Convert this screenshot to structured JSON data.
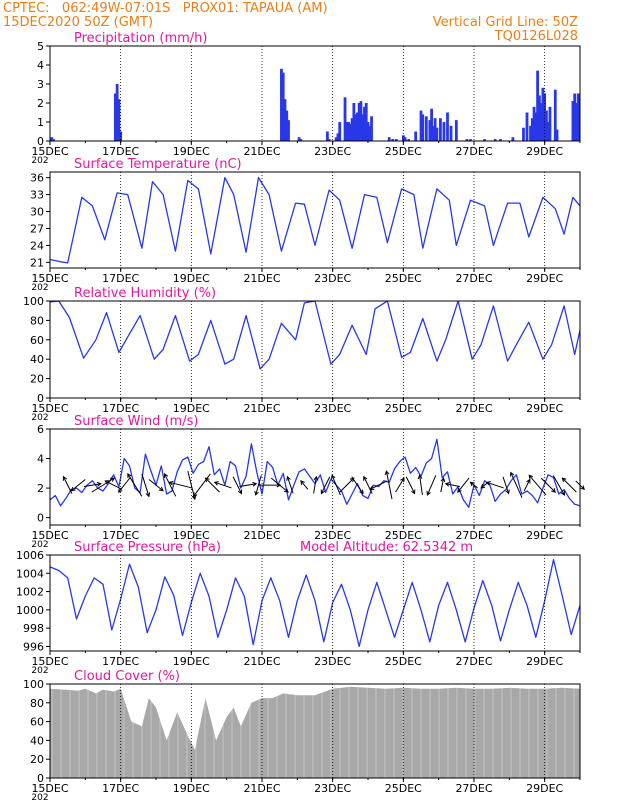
{
  "header": {
    "line1_left": "CPTEC:   062:49W-07:01S   PROX01: TAPAUA (AM)",
    "line2_left": "15DEC2020 50Z (GMT)",
    "line2_right": "Vertical Grid Line: 50Z",
    "line3_right": "TQ0126L028"
  },
  "colors": {
    "header": "#e8801a",
    "title": "#e01aa0",
    "line": "#2838e8",
    "bar": "#2838e8",
    "cloud": "#a8a8a8",
    "text": "#000000"
  },
  "x_axis": {
    "range_days": [
      15,
      30
    ],
    "tick_labels": [
      "15DEC",
      "17DEC",
      "19DEC",
      "21DEC",
      "23DEC",
      "25DEC",
      "27DEC",
      "29DEC"
    ],
    "tick_days": [
      15,
      17,
      19,
      21,
      23,
      25,
      27,
      29
    ],
    "year_fragment": "202",
    "vertical_gridlines": "dotted at each label day"
  },
  "chart_data": [
    {
      "id": "precip",
      "type": "bar",
      "title": "Precipitation (mm/h)",
      "ylim": [
        0,
        5
      ],
      "yticks": [
        0,
        1,
        2,
        3,
        4,
        5
      ],
      "x": [
        15.05,
        15.1,
        16.85,
        16.9,
        16.95,
        17.0,
        21.55,
        21.6,
        21.65,
        21.7,
        21.75,
        22.05,
        22.1,
        22.85,
        22.9,
        23.1,
        23.15,
        23.2,
        23.35,
        23.4,
        23.45,
        23.5,
        23.55,
        23.6,
        23.65,
        23.7,
        23.75,
        23.8,
        23.85,
        23.9,
        23.95,
        24.0,
        24.05,
        24.1,
        24.6,
        24.7,
        24.8,
        25.0,
        25.05,
        25.15,
        25.35,
        25.5,
        25.55,
        25.65,
        25.75,
        25.8,
        25.85,
        25.9,
        25.95,
        26.05,
        26.15,
        26.25,
        26.35,
        26.5,
        26.8,
        26.9,
        27.3,
        27.6,
        27.75,
        28.1,
        28.4,
        28.5,
        28.6,
        28.65,
        28.7,
        28.75,
        28.8,
        28.85,
        28.9,
        28.95,
        29.0,
        29.05,
        29.1,
        29.15,
        29.3,
        29.35,
        29.8,
        29.85,
        29.9,
        29.95
      ],
      "values": [
        0.2,
        0.1,
        2.5,
        3.0,
        2.2,
        0.5,
        3.8,
        3.6,
        2.2,
        1.6,
        1.1,
        0.2,
        0.1,
        0.5,
        0.1,
        0.2,
        0.4,
        1.0,
        2.3,
        1.0,
        1.0,
        0.9,
        1.2,
        2.0,
        1.4,
        1.5,
        2.0,
        2.1,
        1.4,
        1.8,
        2.0,
        1.0,
        0.8,
        1.3,
        0.2,
        0.1,
        0.1,
        0.3,
        0.2,
        0.1,
        0.5,
        1.6,
        1.4,
        1.3,
        1.1,
        1.7,
        0.8,
        1.2,
        0.7,
        1.2,
        1.0,
        1.5,
        0.8,
        1.1,
        0.1,
        0.1,
        0.1,
        0.1,
        0.1,
        0.2,
        0.7,
        1.5,
        0.8,
        1.2,
        1.8,
        1.5,
        3.7,
        2.4,
        2.0,
        2.8,
        2.5,
        1.6,
        1.0,
        1.8,
        2.7,
        0.6,
        2.1,
        2.5,
        2.0,
        2.5
      ]
    },
    {
      "id": "temp",
      "type": "line",
      "title": "Surface Temperature (nC)",
      "ylim": [
        20,
        37
      ],
      "yticks": [
        21,
        24,
        27,
        30,
        33,
        36
      ],
      "x": [
        15.0,
        15.3,
        15.5,
        15.9,
        16.2,
        16.55,
        16.9,
        17.2,
        17.6,
        17.9,
        18.2,
        18.55,
        18.9,
        19.2,
        19.55,
        19.95,
        20.2,
        20.55,
        20.9,
        21.2,
        21.55,
        21.95,
        22.2,
        22.5,
        22.9,
        23.2,
        23.55,
        23.9,
        24.25,
        24.55,
        24.95,
        25.3,
        25.55,
        25.95,
        26.3,
        26.5,
        26.9,
        27.3,
        27.55,
        27.95,
        28.3,
        28.55,
        28.95,
        29.3,
        29.55,
        29.8,
        30.0
      ],
      "values": [
        21.5,
        21.1,
        20.9,
        32.5,
        31.0,
        25.0,
        33.3,
        33.0,
        23.5,
        35.3,
        33.0,
        23.0,
        35.5,
        34.0,
        22.5,
        36.0,
        33.0,
        22.8,
        36.0,
        33.0,
        23.0,
        31.5,
        31.3,
        24.0,
        33.8,
        32.0,
        23.5,
        33.0,
        32.5,
        24.5,
        34.0,
        33.0,
        23.5,
        34.0,
        32.0,
        24.0,
        32.0,
        31.0,
        24.0,
        31.5,
        31.5,
        25.5,
        32.5,
        30.5,
        26.0,
        32.5,
        31.0
      ]
    },
    {
      "id": "rh",
      "type": "line",
      "title": "Relative Humidity (%)",
      "ylim": [
        0,
        100
      ],
      "yticks": [
        0,
        20,
        40,
        60,
        80,
        100
      ],
      "x": [
        15.0,
        15.25,
        15.55,
        15.95,
        16.3,
        16.6,
        16.95,
        17.2,
        17.55,
        17.95,
        18.2,
        18.55,
        18.95,
        19.2,
        19.55,
        19.95,
        20.2,
        20.55,
        20.95,
        21.2,
        21.55,
        21.95,
        22.2,
        22.5,
        22.95,
        23.2,
        23.55,
        23.95,
        24.2,
        24.55,
        24.95,
        25.2,
        25.55,
        25.95,
        26.2,
        26.55,
        26.95,
        27.2,
        27.55,
        27.95,
        28.2,
        28.55,
        28.95,
        29.2,
        29.55,
        29.85,
        30.0
      ],
      "values": [
        99,
        100,
        83,
        41,
        60,
        88,
        47,
        63,
        85,
        40,
        50,
        85,
        38,
        45,
        80,
        35,
        40,
        85,
        30,
        40,
        77,
        60,
        98,
        100,
        35,
        45,
        75,
        45,
        92,
        100,
        42,
        47,
        82,
        38,
        60,
        100,
        40,
        55,
        95,
        38,
        55,
        78,
        40,
        55,
        95,
        45,
        70
      ]
    },
    {
      "id": "wind",
      "type": "line",
      "title": "Surface Wind (m/s)",
      "ylim": [
        -0.5,
        6
      ],
      "yticks": [
        0,
        2,
        4,
        6
      ],
      "x": [
        15.0,
        15.15,
        15.3,
        15.45,
        15.6,
        15.75,
        15.9,
        16.05,
        16.2,
        16.35,
        16.5,
        16.65,
        16.8,
        16.95,
        17.1,
        17.25,
        17.4,
        17.55,
        17.7,
        17.85,
        18.0,
        18.15,
        18.3,
        18.45,
        18.6,
        18.75,
        18.9,
        19.05,
        19.2,
        19.35,
        19.5,
        19.65,
        19.8,
        19.95,
        20.1,
        20.25,
        20.4,
        20.55,
        20.7,
        20.85,
        21.0,
        21.15,
        21.3,
        21.45,
        21.6,
        21.75,
        21.9,
        22.05,
        22.2,
        22.35,
        22.5,
        22.65,
        22.8,
        22.95,
        23.1,
        23.25,
        23.4,
        23.55,
        23.7,
        23.85,
        24.0,
        24.15,
        24.3,
        24.45,
        24.6,
        24.75,
        24.9,
        25.05,
        25.2,
        25.35,
        25.5,
        25.65,
        25.8,
        25.95,
        26.1,
        26.25,
        26.4,
        26.55,
        26.7,
        26.85,
        27.0,
        27.15,
        27.3,
        27.45,
        27.6,
        27.75,
        27.9,
        28.05,
        28.2,
        28.35,
        28.5,
        28.65,
        28.8,
        28.95,
        29.1,
        29.25,
        29.4,
        29.55,
        29.7,
        29.85,
        30.0
      ],
      "values": [
        1.2,
        1.5,
        0.8,
        1.3,
        1.9,
        2.0,
        1.7,
        2.2,
        2.5,
        2.0,
        1.8,
        2.3,
        2.9,
        2.1,
        4.0,
        3.5,
        2.0,
        1.7,
        4.3,
        3.2,
        2.2,
        3.5,
        1.6,
        1.8,
        3.1,
        3.9,
        4.1,
        3.0,
        3.6,
        3.8,
        4.8,
        2.9,
        3.3,
        2.2,
        3.8,
        3.5,
        2.0,
        2.8,
        5.0,
        3.1,
        1.6,
        3.8,
        3.4,
        2.2,
        3.0,
        1.2,
        2.2,
        3.1,
        3.3,
        2.8,
        2.3,
        2.9,
        1.7,
        2.6,
        2.2,
        1.8,
        0.9,
        1.6,
        2.3,
        1.5,
        1.3,
        2.2,
        2.1,
        2.5,
        2.4,
        3.3,
        3.8,
        4.1,
        3.0,
        3.4,
        2.8,
        3.7,
        4.0,
        5.3,
        2.7,
        3.1,
        1.6,
        2.1,
        1.2,
        0.7,
        2.2,
        1.5,
        2.5,
        2.2,
        1.1,
        1.6,
        1.9,
        2.5,
        2.9,
        1.6,
        1.8,
        1.5,
        1.0,
        2.0,
        2.9,
        2.7,
        1.6,
        1.9,
        1.3,
        0.9,
        0.8
      ]
    },
    {
      "id": "pres",
      "type": "line",
      "title": "Surface Pressure (hPa)",
      "annotation": "Model Altitude: 62.5342 m",
      "ylim": [
        995.5,
        1006
      ],
      "yticks": [
        996,
        998,
        1000,
        1002,
        1004,
        1006
      ],
      "x": [
        15.0,
        15.25,
        15.5,
        15.75,
        16.0,
        16.25,
        16.5,
        16.75,
        17.0,
        17.25,
        17.5,
        17.75,
        18.0,
        18.25,
        18.5,
        18.75,
        19.0,
        19.25,
        19.5,
        19.75,
        20.0,
        20.25,
        20.5,
        20.75,
        21.0,
        21.25,
        21.5,
        21.75,
        22.0,
        22.25,
        22.5,
        22.75,
        23.0,
        23.25,
        23.5,
        23.75,
        24.0,
        24.25,
        24.5,
        24.75,
        25.0,
        25.25,
        25.5,
        25.75,
        26.0,
        26.25,
        26.5,
        26.75,
        27.0,
        27.25,
        27.5,
        27.75,
        28.0,
        28.25,
        28.5,
        28.75,
        29.0,
        29.25,
        29.5,
        29.75,
        30.0
      ],
      "values": [
        1004.7,
        1004.3,
        1003.5,
        999.0,
        1001.5,
        1003.5,
        1002.8,
        997.8,
        1001.2,
        1005.0,
        1002.5,
        997.5,
        1000.0,
        1003.6,
        1001.6,
        997.2,
        1000.8,
        1004.0,
        1001.5,
        997.0,
        1000.0,
        1003.5,
        1001.5,
        996.2,
        1001.0,
        1003.5,
        1001.0,
        997.0,
        1001.0,
        1003.8,
        1001.0,
        996.5,
        1000.8,
        1002.8,
        1000.0,
        996.0,
        1000.0,
        1003.0,
        1000.0,
        997.0,
        1000.0,
        1003.0,
        1000.0,
        996.5,
        1000.5,
        1003.0,
        1000.0,
        996.5,
        1000.2,
        1003.2,
        1000.5,
        996.6,
        1000.0,
        1003.0,
        1000.5,
        997.0,
        1001.0,
        1005.5,
        1001.5,
        997.3,
        1000.5
      ]
    },
    {
      "id": "cloud",
      "type": "area",
      "title": "Cloud Cover (%)",
      "ylim": [
        0,
        100
      ],
      "yticks": [
        0,
        20,
        40,
        60,
        80,
        100
      ],
      "x": [
        15.0,
        15.4,
        15.8,
        16.0,
        16.3,
        16.5,
        16.8,
        17.0,
        17.3,
        17.6,
        17.8,
        18.0,
        18.3,
        18.6,
        18.9,
        19.1,
        19.4,
        19.7,
        20.0,
        20.2,
        20.4,
        20.7,
        21.0,
        21.3,
        21.6,
        22.0,
        22.5,
        23.0,
        23.5,
        24.0,
        24.5,
        25.0,
        25.5,
        26.0,
        26.5,
        27.0,
        27.5,
        28.0,
        28.5,
        29.0,
        29.5,
        30.0
      ],
      "values": [
        95,
        94,
        93,
        95,
        90,
        94,
        92,
        95,
        60,
        55,
        85,
        75,
        40,
        70,
        45,
        30,
        85,
        40,
        65,
        75,
        55,
        80,
        85,
        85,
        90,
        88,
        88,
        95,
        97,
        96,
        95,
        96,
        95,
        95,
        96,
        95,
        95,
        96,
        95,
        95,
        96,
        95
      ]
    }
  ],
  "wind_vectors": {
    "x": [
      15.5,
      15.8,
      16.2,
      16.5,
      16.8,
      17.1,
      17.4,
      17.7,
      18.0,
      18.4,
      18.7,
      19.0,
      19.3,
      19.6,
      19.9,
      20.3,
      20.6,
      20.9,
      21.2,
      21.5,
      21.8,
      22.2,
      22.5,
      22.8,
      23.1,
      23.4,
      23.7,
      24.0,
      24.3,
      24.6,
      24.9,
      25.2,
      25.5,
      25.8,
      26.1,
      26.4,
      26.7,
      27.0,
      27.3,
      27.6,
      27.9,
      28.2,
      28.5,
      28.8,
      29.1,
      29.4,
      29.7,
      30.0
    ],
    "u": [
      -0.6,
      -1.0,
      1.2,
      1.6,
      -1.2,
      -0.8,
      -1.0,
      0.5,
      1.0,
      -0.8,
      -1.6,
      0.5,
      -1.2,
      -1.0,
      -1.2,
      0.6,
      1.2,
      -0.4,
      1.6,
      1.2,
      -0.4,
      -0.5,
      0.2,
      -0.6,
      -0.6,
      1.0,
      0.8,
      -0.6,
      -1.2,
      -0.4,
      0.6,
      0.6,
      -0.2,
      -0.6,
      0.2,
      -1.0,
      -0.8,
      -0.5,
      -0.5,
      -1.2,
      0.4,
      -0.8,
      0.4,
      -1.2,
      1.0,
      0.8,
      -1.0,
      0.6
    ],
    "v": [
      1.2,
      -0.8,
      0.2,
      1.0,
      0.6,
      -1.0,
      1.6,
      -1.6,
      -0.8,
      1.6,
      0.4,
      -2.0,
      -1.6,
      1.0,
      0.4,
      -1.2,
      0.2,
      -1.4,
      0.0,
      -1.0,
      1.2,
      0.6,
      1.2,
      -1.2,
      1.4,
      1.0,
      -1.2,
      1.2,
      -0.6,
      2.0,
      1.0,
      -1.2,
      1.4,
      -1.4,
      1.0,
      0.2,
      -1.0,
      0.4,
      -0.4,
      0.4,
      -1.2,
      1.8,
      0.8,
      1.4,
      -1.0,
      -1.4,
      1.0,
      -0.6
    ]
  }
}
